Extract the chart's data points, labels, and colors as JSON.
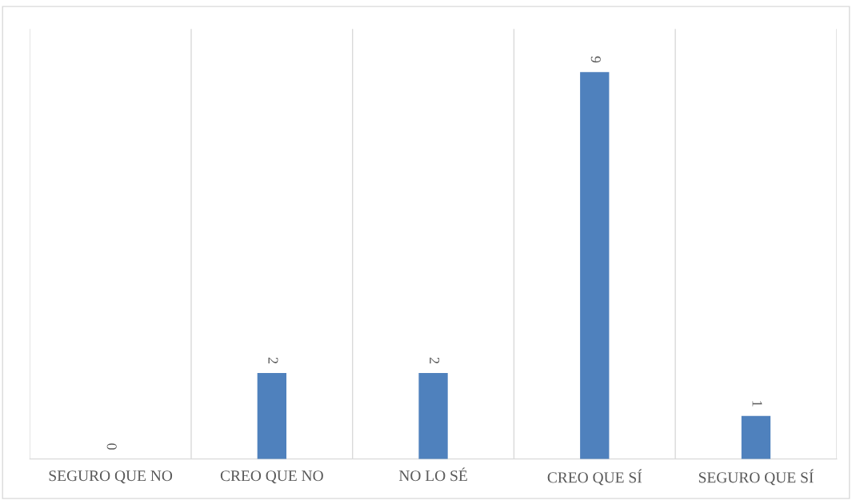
{
  "chart_data": {
    "type": "bar",
    "categories": [
      "SEGURO QUE NO",
      "CREO QUE NO",
      "NO LO SÉ",
      "CREO QUE SÍ",
      "SEGURO QUE SÍ"
    ],
    "values": [
      0,
      2,
      2,
      9,
      1
    ],
    "color": "#4f81bd",
    "ylim": [
      0,
      10
    ],
    "data_labels": true,
    "grid": "x"
  }
}
